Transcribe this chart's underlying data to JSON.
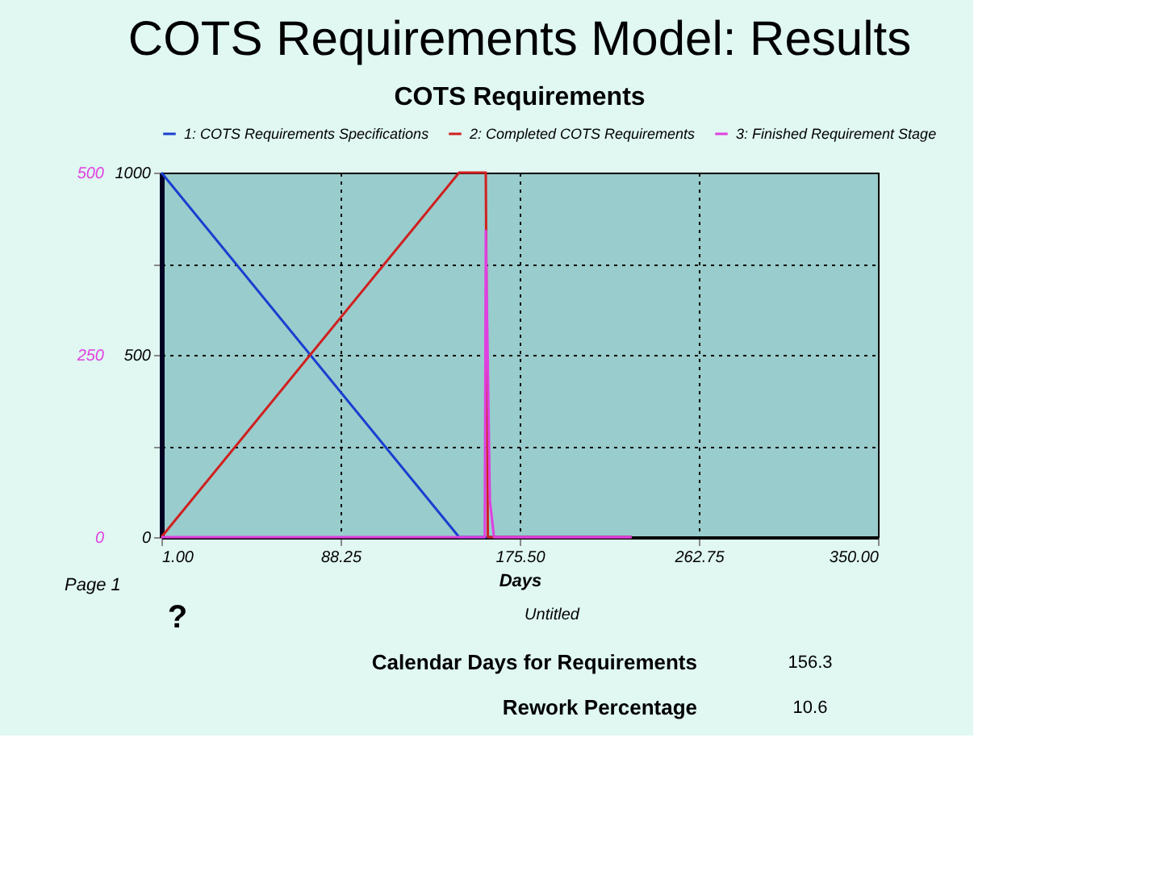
{
  "chart_data": {
    "type": "line",
    "title": "COTS Requirements Model: Results",
    "subtitle": "COTS Requirements",
    "xlabel": "Days",
    "xlim": [
      1,
      350
    ],
    "xticks": [
      {
        "value": 1,
        "label": "1.00"
      },
      {
        "value": 88.25,
        "label": "88.25"
      },
      {
        "value": 175.5,
        "label": "175.50"
      },
      {
        "value": 262.75,
        "label": "262.75"
      },
      {
        "value": 350,
        "label": "350.00"
      }
    ],
    "ylim": [
      0,
      1000
    ],
    "yticks": [
      0,
      {
        "value": 250,
        "label": null
      },
      500,
      {
        "value": 750,
        "label": null
      },
      1000
    ],
    "y2lim": [
      0,
      500
    ],
    "y2ticks": [
      0,
      250,
      500
    ],
    "grid": true,
    "legend": "top",
    "line_style": "solid",
    "marker": "none",
    "series": [
      {
        "name": "1: COTS Requirements  Specifications",
        "color": "#1a3fd0",
        "x": [
          1,
          146,
          159,
          230
        ],
        "values": [
          1000,
          0,
          0,
          0
        ]
      },
      {
        "name": "2: Completed COTS  Requirements",
        "color": "#d02020",
        "x": [
          1,
          146,
          159,
          160,
          230
        ],
        "values": [
          0,
          1000,
          1000,
          0,
          0
        ]
      },
      {
        "name": "3: Finished Requirement  Stage",
        "color": "#e040e0",
        "axis": "y2",
        "x": [
          1,
          158.5,
          159,
          161,
          163,
          230
        ],
        "values": [
          0,
          0,
          420,
          50,
          0,
          0
        ]
      }
    ],
    "annotations": [
      "Page 1",
      "?",
      "Untitled",
      "Calendar Days for Requirements",
      "156.3",
      "Rework Percentage",
      "10.6"
    ]
  }
}
